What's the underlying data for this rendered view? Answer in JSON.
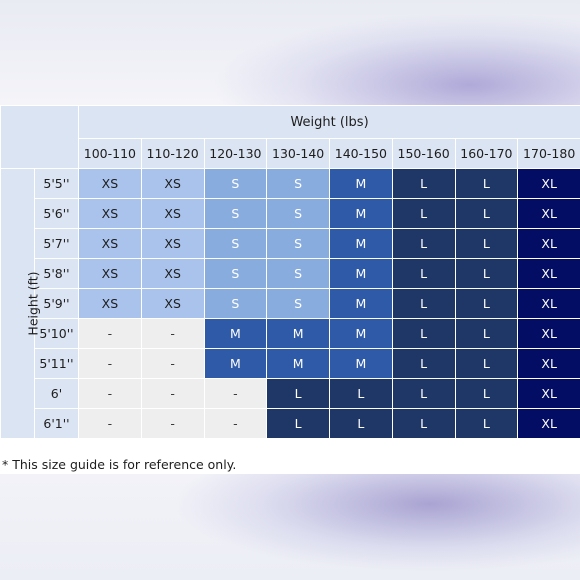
{
  "chart_data": {
    "type": "table",
    "title": "",
    "column_header": "Weight (lbs)",
    "row_header": "Height (ft)",
    "columns": [
      "100-110",
      "110-120",
      "120-130",
      "130-140",
      "140-150",
      "150-160",
      "160-170",
      "170-180"
    ],
    "rows": [
      {
        "height": "5'5''",
        "sizes": [
          "XS",
          "XS",
          "S",
          "S",
          "M",
          "L",
          "L",
          "XL"
        ]
      },
      {
        "height": "5'6''",
        "sizes": [
          "XS",
          "XS",
          "S",
          "S",
          "M",
          "L",
          "L",
          "XL"
        ]
      },
      {
        "height": "5'7''",
        "sizes": [
          "XS",
          "XS",
          "S",
          "S",
          "M",
          "L",
          "L",
          "XL"
        ]
      },
      {
        "height": "5'8''",
        "sizes": [
          "XS",
          "XS",
          "S",
          "S",
          "M",
          "L",
          "L",
          "XL"
        ]
      },
      {
        "height": "5'9''",
        "sizes": [
          "XS",
          "XS",
          "S",
          "S",
          "M",
          "L",
          "L",
          "XL"
        ]
      },
      {
        "height": "5'10''",
        "sizes": [
          "-",
          "-",
          "M",
          "M",
          "M",
          "L",
          "L",
          "XL"
        ]
      },
      {
        "height": "5'11''",
        "sizes": [
          "-",
          "-",
          "M",
          "M",
          "M",
          "L",
          "L",
          "XL"
        ]
      },
      {
        "height": "6'",
        "sizes": [
          "-",
          "-",
          "-",
          "L",
          "L",
          "L",
          "L",
          "XL"
        ]
      },
      {
        "height": "6'1''",
        "sizes": [
          "-",
          "-",
          "-",
          "L",
          "L",
          "L",
          "L",
          "XL"
        ]
      }
    ],
    "colors": {
      "XS": "#a9c3ec",
      "S": "#89acdf",
      "M": "#2f5aa7",
      "L": "#1f3766",
      "XL": "#020d63",
      "-": "#eeeeee",
      "header": "#dbe4f2"
    }
  },
  "note": "* This size guide is for reference only."
}
